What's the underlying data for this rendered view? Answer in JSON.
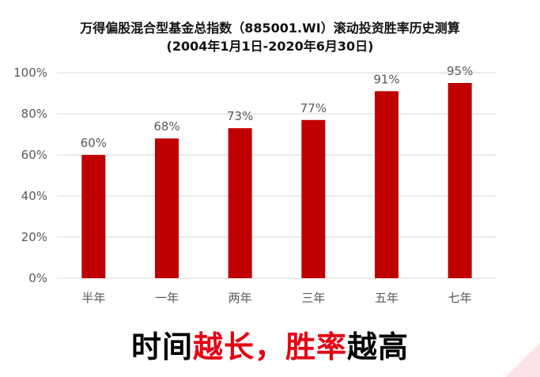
{
  "chart_data": {
    "type": "bar",
    "title": "万得偏股混合型基金总指数（885001.WI）滚动投资胜率历史测算",
    "subtitle": "(2004年1月1日-2020年6月30日)",
    "categories": [
      "半年",
      "一年",
      "两年",
      "三年",
      "五年",
      "七年"
    ],
    "values": [
      60,
      68,
      73,
      77,
      91,
      95
    ],
    "data_labels": [
      "60%",
      "68%",
      "73%",
      "77%",
      "91%",
      "95%"
    ],
    "ylim": [
      0,
      100
    ],
    "yticks": [
      0,
      20,
      40,
      60,
      80,
      100
    ],
    "ytick_labels": [
      "0%",
      "20%",
      "40%",
      "60%",
      "80%",
      "100%"
    ],
    "xlabel": "",
    "ylabel": "",
    "grid": true,
    "bar_color": "#c00000"
  },
  "caption": {
    "part1": "时间",
    "part2": "越长，",
    "part3": "胜率",
    "part4": "越高"
  },
  "colors": {
    "highlight": "#e60012",
    "gridline": "#d9d9d9",
    "tick_text": "#595959",
    "corner_accent": "#fbe3e7"
  }
}
